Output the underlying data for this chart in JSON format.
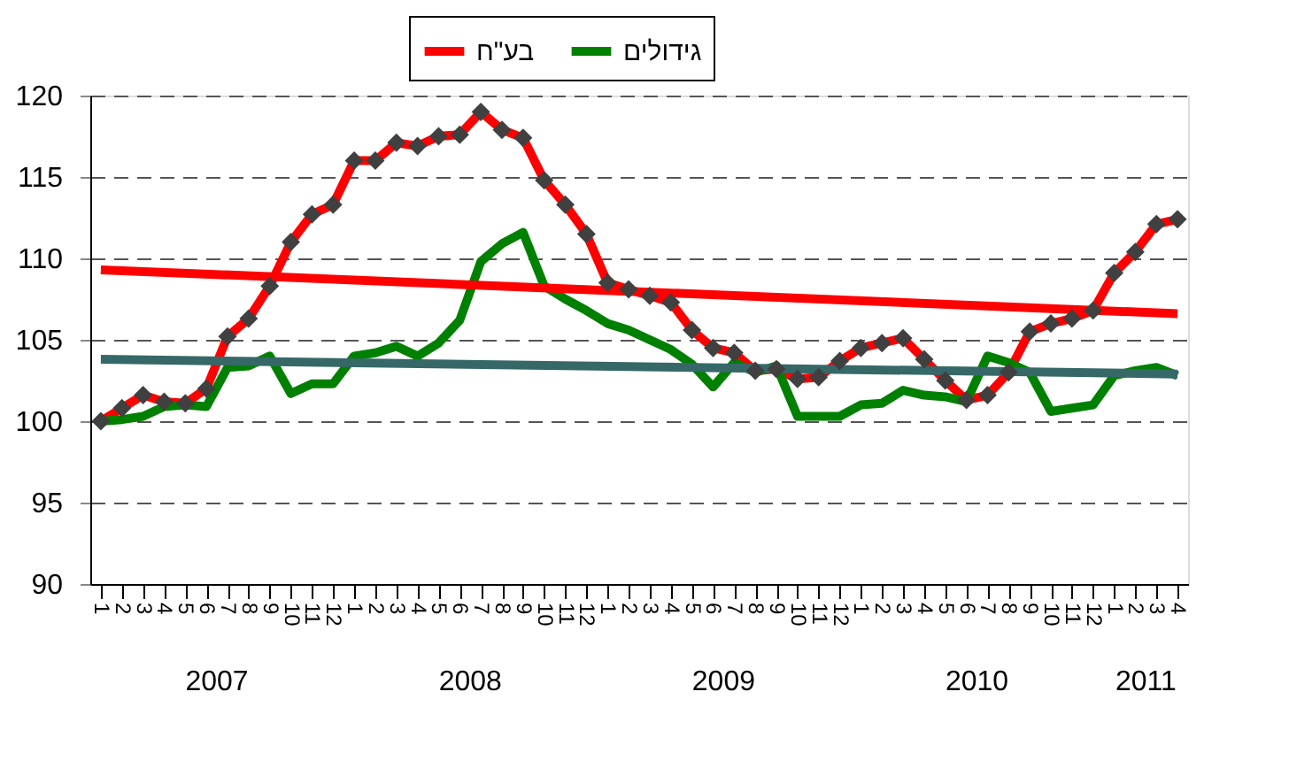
{
  "chart_data": {
    "type": "line",
    "categories": [
      "1",
      "2",
      "3",
      "4",
      "5",
      "6",
      "7",
      "8",
      "9",
      "10",
      "11",
      "12",
      "1",
      "2",
      "3",
      "4",
      "5",
      "6",
      "7",
      "8",
      "9",
      "10",
      "11",
      "12",
      "1",
      "2",
      "3",
      "4",
      "5",
      "6",
      "7",
      "8",
      "9",
      "10",
      "11",
      "12",
      "1",
      "2",
      "3",
      "4",
      "5",
      "6",
      "7",
      "8",
      "9",
      "10",
      "11",
      "12",
      "1",
      "2",
      "3",
      "4"
    ],
    "series": [
      {
        "name": "בע\"ח",
        "color": "#ff0000",
        "marker": "diamond",
        "values": [
          100,
          100.8,
          101.6,
          101.2,
          101.1,
          102,
          105.2,
          106.3,
          108.3,
          111,
          112.7,
          113.3,
          116,
          116,
          117.1,
          116.9,
          117.5,
          117.6,
          119,
          117.9,
          117.4,
          114.8,
          113.3,
          111.5,
          108.5,
          108.1,
          107.7,
          107.3,
          105.6,
          104.5,
          104.2,
          103.1,
          103.2,
          102.6,
          102.7,
          103.7,
          104.5,
          104.8,
          105.1,
          103.8,
          102.5,
          101.3,
          101.6,
          103,
          105.5,
          106,
          106.3,
          106.8,
          109.1,
          110.4,
          112.1,
          112.4
        ]
      },
      {
        "name": "גידולים",
        "color": "#008000",
        "marker": "none",
        "values": [
          100,
          100.1,
          100.3,
          100.9,
          101,
          100.9,
          103.3,
          103.4,
          104,
          101.7,
          102.3,
          102.3,
          104,
          104.2,
          104.6,
          104,
          104.8,
          106.2,
          109.8,
          110.9,
          111.6,
          108.3,
          107.5,
          106.8,
          106,
          105.6,
          105,
          104.4,
          103.5,
          102.1,
          103.6,
          103,
          103.4,
          100.3,
          100.3,
          100.3,
          101,
          101.1,
          101.9,
          101.6,
          101.5,
          101.2,
          104,
          103.6,
          103,
          100.6,
          100.8,
          101,
          102.8,
          103.1,
          103.3,
          102.8
        ]
      },
      {
        "color": "#ff0000",
        "marker": "none",
        "values": [
          109.3,
          null,
          null,
          null,
          null,
          null,
          null,
          null,
          null,
          null,
          null,
          null,
          null,
          null,
          null,
          null,
          null,
          null,
          null,
          null,
          null,
          null,
          null,
          null,
          null,
          null,
          null,
          null,
          null,
          null,
          null,
          null,
          null,
          null,
          null,
          null,
          null,
          null,
          null,
          null,
          null,
          null,
          null,
          null,
          null,
          null,
          null,
          null,
          null,
          null,
          null,
          106.6
        ]
      },
      {
        "color": "#366868",
        "marker": "none",
        "values": [
          103.8,
          null,
          null,
          null,
          null,
          null,
          null,
          null,
          null,
          null,
          null,
          null,
          null,
          null,
          null,
          null,
          null,
          null,
          null,
          null,
          null,
          null,
          null,
          null,
          null,
          null,
          null,
          null,
          null,
          null,
          null,
          null,
          null,
          null,
          null,
          null,
          null,
          null,
          null,
          null,
          null,
          null,
          null,
          null,
          null,
          null,
          null,
          null,
          null,
          null,
          null,
          102.9
        ]
      }
    ],
    "ylim": [
      90,
      120
    ],
    "yticks": [
      90,
      95,
      100,
      105,
      110,
      115,
      120
    ],
    "grid": "y",
    "legend": "top",
    "line_style": "solid",
    "annotations": [
      "2007",
      "2008",
      "2009",
      "2010",
      "2011"
    ]
  }
}
